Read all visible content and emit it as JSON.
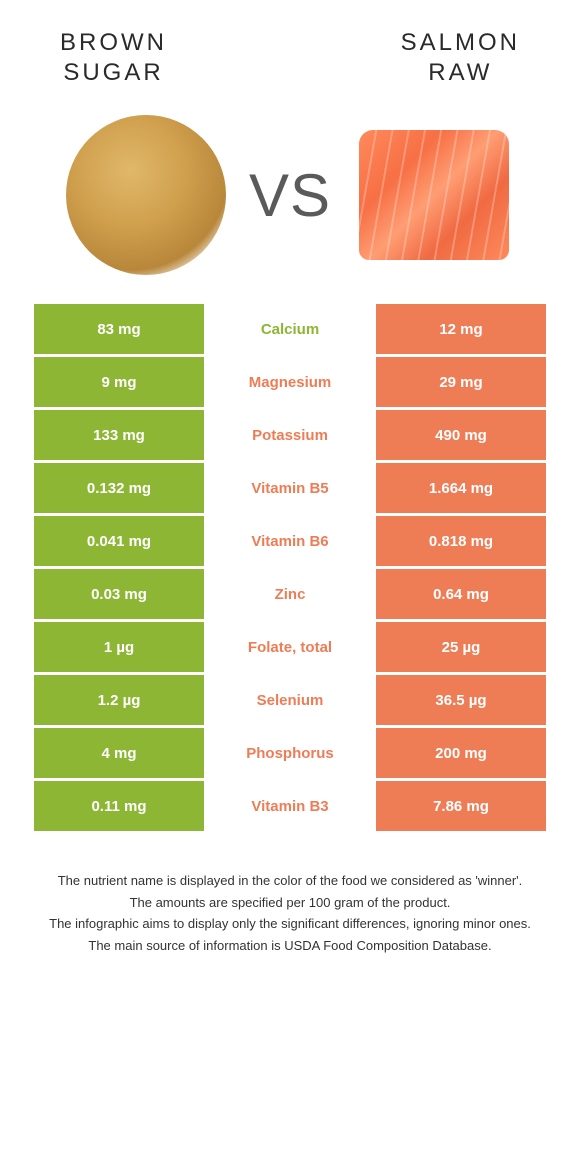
{
  "colors": {
    "left": "#8db635",
    "right": "#ee7d56",
    "left_bg": "#8db635",
    "right_bg": "#ee7d56",
    "mid_text_left": "#8db635",
    "mid_text_right": "#ee7d56",
    "title_text": "#2a2a2a",
    "footer_text": "#333333"
  },
  "header": {
    "left_title": "BROWN\nSUGAR",
    "right_title": "SALMON\nRAW",
    "vs": "VS"
  },
  "rows": [
    {
      "left": "83 mg",
      "label": "Calcium",
      "right": "12 mg",
      "winner": "left"
    },
    {
      "left": "9 mg",
      "label": "Magnesium",
      "right": "29 mg",
      "winner": "right"
    },
    {
      "left": "133 mg",
      "label": "Potassium",
      "right": "490 mg",
      "winner": "right"
    },
    {
      "left": "0.132 mg",
      "label": "Vitamin B5",
      "right": "1.664 mg",
      "winner": "right"
    },
    {
      "left": "0.041 mg",
      "label": "Vitamin B6",
      "right": "0.818 mg",
      "winner": "right"
    },
    {
      "left": "0.03 mg",
      "label": "Zinc",
      "right": "0.64 mg",
      "winner": "right"
    },
    {
      "left": "1 µg",
      "label": "Folate, total",
      "right": "25 µg",
      "winner": "right"
    },
    {
      "left": "1.2 µg",
      "label": "Selenium",
      "right": "36.5 µg",
      "winner": "right"
    },
    {
      "left": "4 mg",
      "label": "Phosphorus",
      "right": "200 mg",
      "winner": "right"
    },
    {
      "left": "0.11 mg",
      "label": "Vitamin B3",
      "right": "7.86 mg",
      "winner": "right"
    }
  ],
  "footer": {
    "line1": "The nutrient name is displayed in the color of the food we considered as 'winner'.",
    "line2": "The amounts are specified per 100 gram of the product.",
    "line3": "The infographic aims to display only the significant differences, ignoring minor ones.",
    "line4": "The main source of information is USDA Food Composition Database."
  }
}
